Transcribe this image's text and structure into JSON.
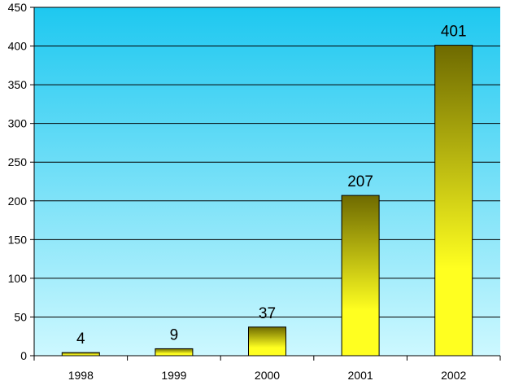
{
  "chart_data": {
    "type": "bar",
    "categories": [
      "1998",
      "1999",
      "2000",
      "2001",
      "2002"
    ],
    "values": [
      4,
      9,
      37,
      207,
      401
    ],
    "data_labels": [
      "4",
      "9",
      "37",
      "207",
      "401"
    ],
    "title": "",
    "xlabel": "",
    "ylabel": "",
    "ylim": [
      0,
      450
    ],
    "yticks": [
      0,
      50,
      100,
      150,
      200,
      250,
      300,
      350,
      400,
      450
    ],
    "grid": true,
    "legend": "none",
    "colors": {
      "plot_bg_top": "#1ec8f0",
      "plot_bg_bottom": "#cdf8ff",
      "bar_top": "#6e6a00",
      "bar_bottom": "#ffff20",
      "gridline": "#000000"
    }
  }
}
